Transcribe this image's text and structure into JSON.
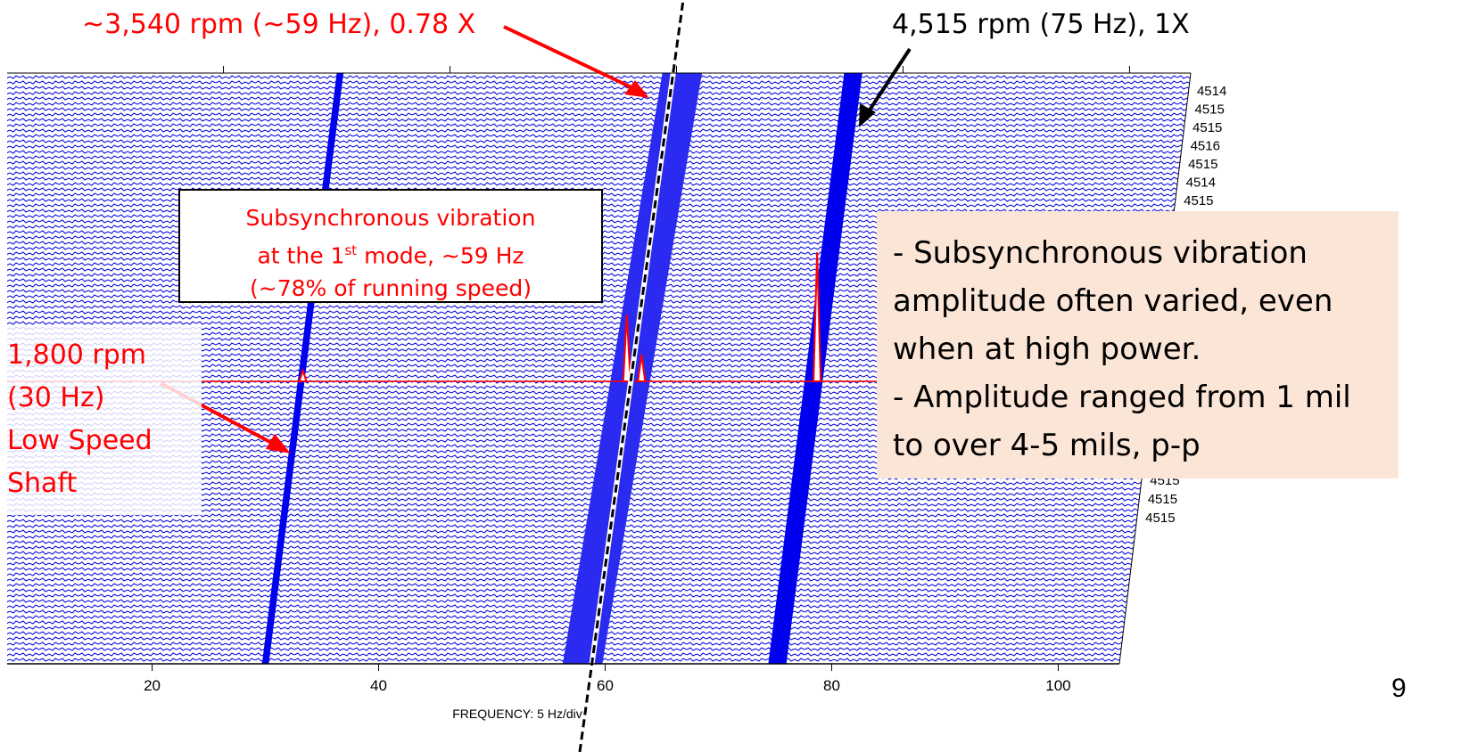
{
  "chart_data": {
    "type": "waterfall",
    "xlabel": "FREQUENCY: 5 Hz/div",
    "xlim": [
      7.2,
      105.4
    ],
    "xticks": [
      20,
      40,
      60,
      80,
      100
    ],
    "row_labels": [
      "4514",
      "4515",
      "4515",
      "4516",
      "4515",
      "4514",
      "4515",
      "4515",
      "4515",
      "4515"
    ],
    "ridges": [
      {
        "x": [
          30,
          30.3
        ],
        "width": 0.6,
        "color": "#0000ee"
      },
      {
        "x": [
          58,
          60.5
        ],
        "width": 3.5,
        "color": "#2a2af0"
      },
      {
        "x": [
          75.2,
          75.6
        ],
        "width": 1.6,
        "color": "#0000ee"
      }
    ],
    "highlight": {
      "color": "#ff0000",
      "x": [
        30.3,
        58.9,
        60.2,
        75.7
      ],
      "values": [
        12,
        75,
        30,
        145
      ]
    },
    "annotations": {
      "subsync_speed": "~3,540 rpm (~59 Hz), 0.78 X",
      "running_speed": "4,515 rpm (75 Hz), 1X",
      "mode_box": [
        "Subsynchronous vibration",
        "at the 1",
        "st",
        " mode, ~59 Hz",
        "(~78% of running speed)"
      ],
      "low_speed": [
        "1,800 rpm",
        "(30 Hz)",
        "Low Speed",
        "Shaft"
      ],
      "notes": [
        " - Subsynchronous vibration amplitude often varied, even when at high power.",
        " - Amplitude ranged from 1 mil to over 4-5 mils, p-p"
      ]
    },
    "page_number": "9"
  }
}
